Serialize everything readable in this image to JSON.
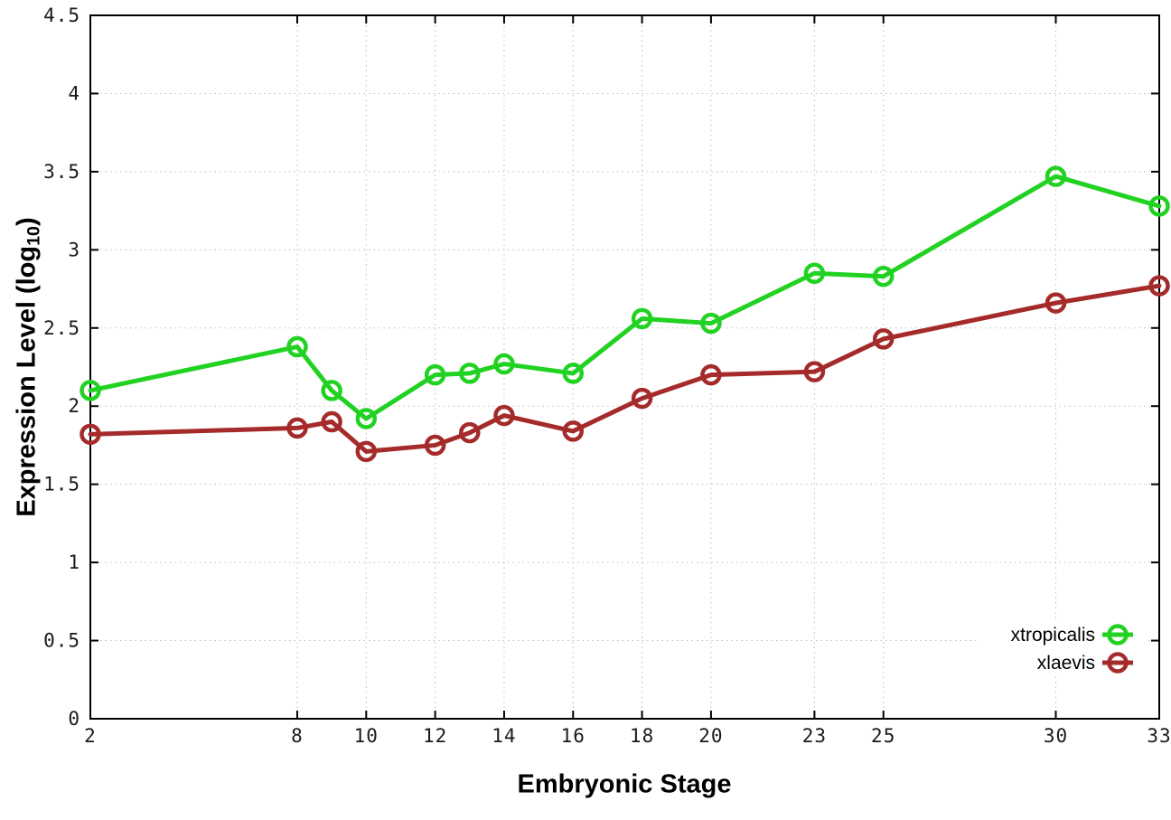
{
  "chart_data": {
    "type": "line",
    "title": "",
    "xlabel": "Embryonic Stage",
    "ylabel": "Expression Level (log10)",
    "ylabel_parts": {
      "pre": "Expression Level (log",
      "sub": "10",
      "post": ")"
    },
    "x": [
      2,
      8,
      9,
      10,
      12,
      13,
      14,
      16,
      18,
      20,
      23,
      25,
      30,
      33
    ],
    "series": [
      {
        "name": "xtropicalis",
        "color": "#22d222",
        "values": [
          2.1,
          2.38,
          2.1,
          1.92,
          2.2,
          2.21,
          2.27,
          2.21,
          2.56,
          2.53,
          2.85,
          2.83,
          3.47,
          3.28
        ]
      },
      {
        "name": "xlaevis",
        "color": "#a52a2a",
        "values": [
          1.82,
          1.86,
          1.9,
          1.71,
          1.75,
          1.83,
          1.94,
          1.84,
          2.05,
          2.2,
          2.22,
          2.43,
          2.66,
          2.77
        ]
      }
    ],
    "xlim": [
      2,
      33
    ],
    "ylim": [
      0,
      4.5
    ],
    "xticks": [
      2,
      8,
      10,
      12,
      14,
      16,
      18,
      20,
      23,
      25,
      30,
      33
    ],
    "xtick_labels": [
      "2",
      "8",
      "10",
      "12",
      "14",
      "16",
      "18",
      "20",
      "23",
      "25",
      "30",
      "33"
    ],
    "yticks": [
      0,
      0.5,
      1,
      1.5,
      2,
      2.5,
      3,
      3.5,
      4,
      4.5
    ],
    "ytick_labels": [
      "0",
      "0.5",
      "1",
      "1.5",
      "2",
      "2.5",
      "3",
      "3.5",
      "4",
      "4.5"
    ],
    "grid": true,
    "legend_position": "bottom-right",
    "colors": {
      "grid": "#bdbdbd",
      "border": "#000000",
      "tick_text": "#1a1a1a",
      "background": "#ffffff"
    }
  }
}
